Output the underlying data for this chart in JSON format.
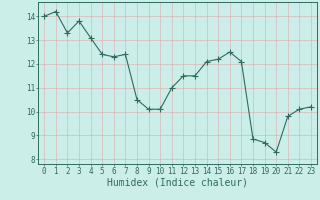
{
  "x": [
    0,
    1,
    2,
    3,
    4,
    5,
    6,
    7,
    8,
    9,
    10,
    11,
    12,
    13,
    14,
    15,
    16,
    17,
    18,
    19,
    20,
    21,
    22,
    23
  ],
  "y": [
    14.0,
    14.2,
    13.3,
    13.8,
    13.1,
    12.4,
    12.3,
    12.4,
    10.5,
    10.1,
    10.1,
    11.0,
    11.5,
    11.5,
    12.1,
    12.2,
    12.5,
    12.1,
    8.85,
    8.7,
    8.3,
    9.8,
    10.1,
    10.2
  ],
  "line_color": "#2e6b5e",
  "marker": "+",
  "marker_size": 4,
  "bg_color": "#cceee8",
  "grid_color": "#d9b8b8",
  "xlabel": "Humidex (Indice chaleur)",
  "ylim": [
    7.8,
    14.6
  ],
  "xlim": [
    -0.5,
    23.5
  ],
  "yticks": [
    8,
    9,
    10,
    11,
    12,
    13,
    14
  ],
  "xticks": [
    0,
    1,
    2,
    3,
    4,
    5,
    6,
    7,
    8,
    9,
    10,
    11,
    12,
    13,
    14,
    15,
    16,
    17,
    18,
    19,
    20,
    21,
    22,
    23
  ],
  "tick_color": "#2e6b5e",
  "label_fontsize": 7,
  "tick_fontsize": 5.5
}
